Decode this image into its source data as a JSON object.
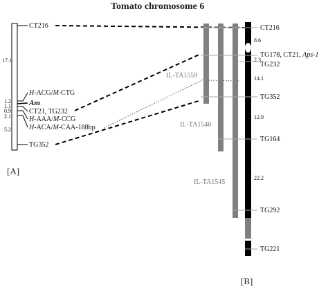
{
  "title": "Tomato chromosome 6",
  "panel_a": {
    "label": "[A]",
    "markers": {
      "ct216": "CT216",
      "acg_ctg_h": "H",
      "acg_ctg_rest": "-ACG/",
      "acg_ctg_m": "M",
      "acg_ctg_tail": "-CTG",
      "am": "Am",
      "ct21_tg232": "CT21, TG232",
      "aaa_ccg_h": "H",
      "aaa_ccg_rest": "-AAA/",
      "aaa_ccg_m": "M",
      "aaa_ccg_tail": "-CCG",
      "aca_caa_h": "H",
      "aca_caa_rest": "-ACA/",
      "aca_caa_m": "M",
      "aca_caa_tail": "-CAA-188bp",
      "tg352": "TG352"
    },
    "distances": {
      "d1": "17.1",
      "d2": "1.2",
      "d3": "1.1",
      "d4": "0.9",
      "d5": "2.1",
      "d6": "5.2"
    }
  },
  "panel_b": {
    "label": "[B]",
    "markers": {
      "ct216": "CT216",
      "tg178_prefix": "TG178, CT21, ",
      "tg178_italic": "Aps-1",
      "tg232": "TG232",
      "tg352": "TG352",
      "tg164": "TG164",
      "tg292": "TG292",
      "tg221": "TG221"
    },
    "distances": {
      "d1": "8.6",
      "d2": "2.3",
      "d3": "14.1",
      "d4": "12.9",
      "d5": "22.2"
    },
    "introgression_lines": {
      "il1": "IL-TA1559",
      "il2": "IL-TA1546",
      "il3": "IL-TA1545"
    }
  },
  "colors": {
    "chromosome_b": "#000000",
    "il_bar": "#808080",
    "il_label": "#777777",
    "marker_line": "#aaaaaa"
  }
}
